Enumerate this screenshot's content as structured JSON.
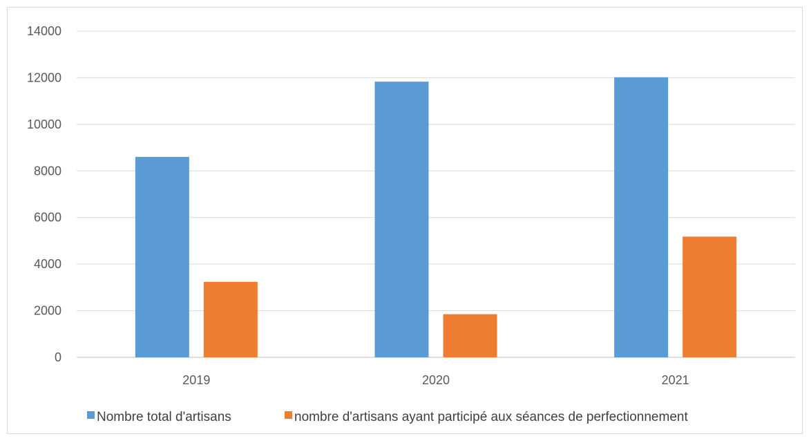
{
  "chart_data": {
    "type": "bar",
    "categories": [
      "2019",
      "2020",
      "2021"
    ],
    "series": [
      {
        "name": "Nombre total d'artisans",
        "values": [
          8600,
          11830,
          12020
        ],
        "color": "#5b9bd5"
      },
      {
        "name": "nombre d'artisans ayant participé aux séances de perfectionnement",
        "values": [
          3240,
          1850,
          5180
        ],
        "color": "#ed7d31"
      }
    ],
    "title": "",
    "xlabel": "",
    "ylabel": "",
    "ylim": [
      0,
      14000
    ],
    "yticks": [
      "0",
      "2000",
      "4000",
      "6000",
      "8000",
      "10000",
      "12000",
      "14000"
    ],
    "grid": true,
    "legend_position": "bottom"
  }
}
